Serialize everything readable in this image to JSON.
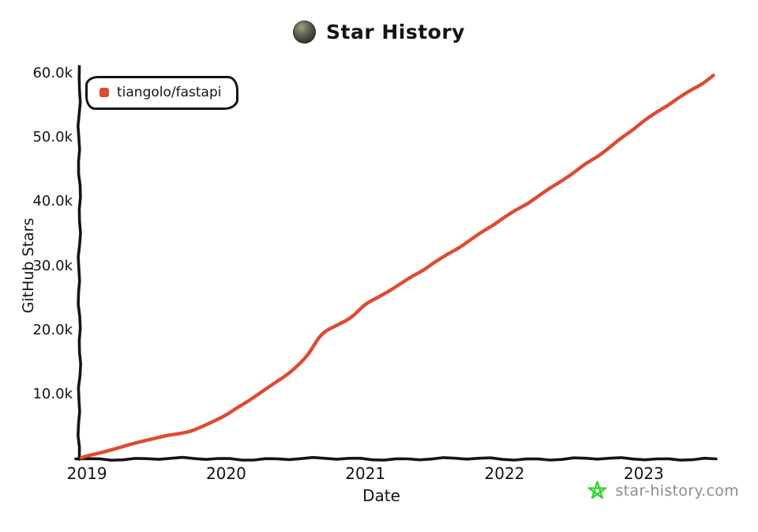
{
  "header": {
    "title": "Star History",
    "avatar": "tiangolo-avatar"
  },
  "watermark": {
    "text": "star-history.com",
    "icon": "green-star-outline",
    "star_color": "#35d435",
    "text_color": "#8c8c8c"
  },
  "chart_data": {
    "type": "line",
    "title": "Star History",
    "xlabel": "Date",
    "ylabel": "GitHub Stars",
    "legend_position": "top-left",
    "grid": false,
    "style": "hand-drawn-xkcd",
    "x_range": [
      2018.96,
      2023.52
    ],
    "y_range": [
      0,
      60000
    ],
    "x_ticks": [
      {
        "value": 2019,
        "label": "2019"
      },
      {
        "value": 2020,
        "label": "2020"
      },
      {
        "value": 2021,
        "label": "2021"
      },
      {
        "value": 2022,
        "label": "2022"
      },
      {
        "value": 2023,
        "label": "2023"
      }
    ],
    "y_ticks": [
      {
        "value": 10000,
        "label": "10.0k"
      },
      {
        "value": 20000,
        "label": "20.0k"
      },
      {
        "value": 30000,
        "label": "30.0k"
      },
      {
        "value": 40000,
        "label": "40.0k"
      },
      {
        "value": 50000,
        "label": "50.0k"
      },
      {
        "value": 60000,
        "label": "60.0k"
      }
    ],
    "colors": {
      "axis": "#141414",
      "text": "#141414"
    },
    "series": [
      {
        "name": "tiangolo/fastapi",
        "color": "#dd4b32",
        "points_format": [
          "decimal_year",
          "stars"
        ],
        "points": [
          [
            2018.96,
            100
          ],
          [
            2019.0,
            400
          ],
          [
            2019.08,
            800
          ],
          [
            2019.17,
            1300
          ],
          [
            2019.25,
            1800
          ],
          [
            2019.33,
            2300
          ],
          [
            2019.42,
            2800
          ],
          [
            2019.5,
            3200
          ],
          [
            2019.58,
            3600
          ],
          [
            2019.67,
            3900
          ],
          [
            2019.75,
            4300
          ],
          [
            2019.83,
            5000
          ],
          [
            2019.92,
            5900
          ],
          [
            2020.0,
            6800
          ],
          [
            2020.08,
            7900
          ],
          [
            2020.17,
            9100
          ],
          [
            2020.25,
            10300
          ],
          [
            2020.33,
            11500
          ],
          [
            2020.42,
            12800
          ],
          [
            2020.5,
            14200
          ],
          [
            2020.58,
            16000
          ],
          [
            2020.63,
            17600
          ],
          [
            2020.67,
            18900
          ],
          [
            2020.72,
            19900
          ],
          [
            2020.79,
            20700
          ],
          [
            2020.87,
            21600
          ],
          [
            2020.92,
            22400
          ],
          [
            2021.0,
            24000
          ],
          [
            2021.08,
            25000
          ],
          [
            2021.17,
            26100
          ],
          [
            2021.25,
            27200
          ],
          [
            2021.33,
            28300
          ],
          [
            2021.42,
            29400
          ],
          [
            2021.5,
            30600
          ],
          [
            2021.58,
            31700
          ],
          [
            2021.67,
            32800
          ],
          [
            2021.75,
            34000
          ],
          [
            2021.83,
            35200
          ],
          [
            2021.92,
            36400
          ],
          [
            2022.0,
            37600
          ],
          [
            2022.08,
            38700
          ],
          [
            2022.17,
            39800
          ],
          [
            2022.25,
            41000
          ],
          [
            2022.33,
            42200
          ],
          [
            2022.42,
            43400
          ],
          [
            2022.5,
            44600
          ],
          [
            2022.58,
            45900
          ],
          [
            2022.67,
            47100
          ],
          [
            2022.75,
            48400
          ],
          [
            2022.83,
            49800
          ],
          [
            2022.92,
            51200
          ],
          [
            2023.0,
            52600
          ],
          [
            2023.08,
            53800
          ],
          [
            2023.17,
            55000
          ],
          [
            2023.25,
            56200
          ],
          [
            2023.33,
            57300
          ],
          [
            2023.42,
            58400
          ],
          [
            2023.5,
            59700
          ]
        ]
      }
    ]
  }
}
